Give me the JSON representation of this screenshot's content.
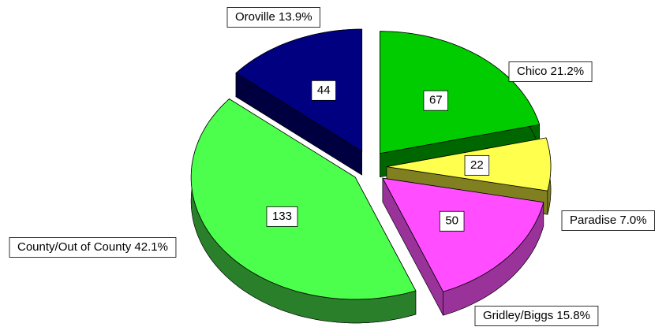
{
  "chart_data": {
    "type": "pie",
    "categories": [
      "Chico",
      "Paradise",
      "Gridley/Biggs",
      "County/Out of County",
      "Oroville"
    ],
    "labels": [
      "Chico 21.2%",
      "Paradise 7.0%",
      "Gridley/Biggs 15.8%",
      "County/Out of County 42.1%",
      "Oroville 13.9%"
    ],
    "values": [
      67,
      22,
      50,
      133,
      44
    ],
    "colors": [
      "#00cc00",
      "#ffff4d",
      "#ff4dff",
      "#4dff4d",
      "#000080"
    ],
    "side_colors": [
      "#006600",
      "#808020",
      "#993399",
      "#2a802a",
      "#000040"
    ]
  }
}
